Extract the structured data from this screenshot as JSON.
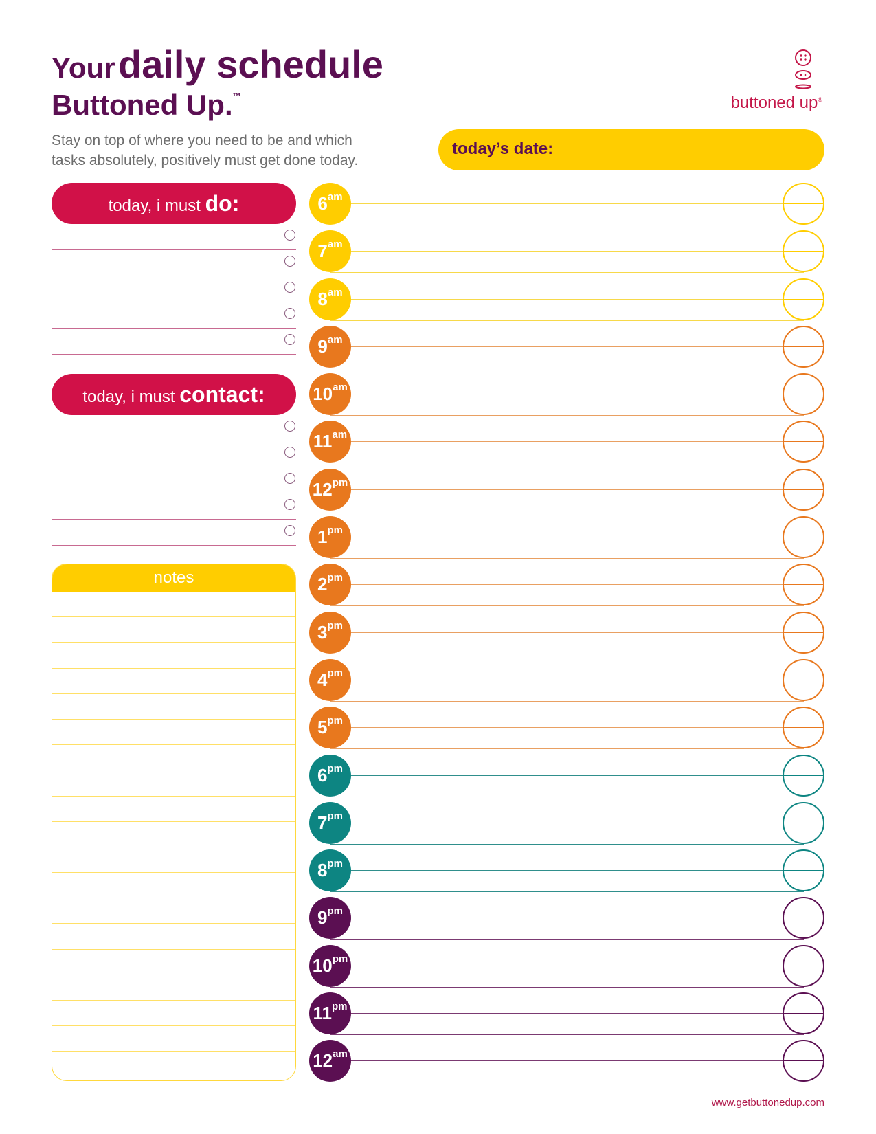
{
  "header": {
    "title_your": "Your",
    "title_daily": "daily schedule",
    "title_buttoned": "Buttoned Up.",
    "title_tm": "™",
    "subtitle_line1": "Stay on top of where you need to be and which",
    "subtitle_line2": "tasks absolutely, positively must get done today."
  },
  "logo": {
    "text": "buttoned up",
    "reg": "®",
    "icon": "button-stack-icon"
  },
  "date": {
    "label": "today’s date:"
  },
  "do_section": {
    "label_light": "today, i must ",
    "label_strong": "do:",
    "rows": [
      "",
      "",
      "",
      "",
      ""
    ]
  },
  "contact_section": {
    "label_light": "today, i must ",
    "label_strong": "contact:",
    "rows": [
      "",
      "",
      "",
      "",
      ""
    ]
  },
  "notes": {
    "label": "notes",
    "line_count": 18
  },
  "colors": {
    "yellow": "#ffcd00",
    "orange": "#e8781e",
    "teal": "#0d8582",
    "purple": "#5b0f52",
    "red": "#d11148"
  },
  "schedule": [
    {
      "hour": "6",
      "meridiem": "am",
      "color": "yellow"
    },
    {
      "hour": "7",
      "meridiem": "am",
      "color": "yellow"
    },
    {
      "hour": "8",
      "meridiem": "am",
      "color": "yellow"
    },
    {
      "hour": "9",
      "meridiem": "am",
      "color": "orange"
    },
    {
      "hour": "10",
      "meridiem": "am",
      "color": "orange"
    },
    {
      "hour": "11",
      "meridiem": "am",
      "color": "orange"
    },
    {
      "hour": "12",
      "meridiem": "pm",
      "color": "orange"
    },
    {
      "hour": "1",
      "meridiem": "pm",
      "color": "orange"
    },
    {
      "hour": "2",
      "meridiem": "pm",
      "color": "orange"
    },
    {
      "hour": "3",
      "meridiem": "pm",
      "color": "orange"
    },
    {
      "hour": "4",
      "meridiem": "pm",
      "color": "orange"
    },
    {
      "hour": "5",
      "meridiem": "pm",
      "color": "orange"
    },
    {
      "hour": "6",
      "meridiem": "pm",
      "color": "teal"
    },
    {
      "hour": "7",
      "meridiem": "pm",
      "color": "teal"
    },
    {
      "hour": "8",
      "meridiem": "pm",
      "color": "teal"
    },
    {
      "hour": "9",
      "meridiem": "pm",
      "color": "purple"
    },
    {
      "hour": "10",
      "meridiem": "pm",
      "color": "purple"
    },
    {
      "hour": "11",
      "meridiem": "pm",
      "color": "purple"
    },
    {
      "hour": "12",
      "meridiem": "am",
      "color": "purple"
    }
  ],
  "footer": {
    "url": "www.getbuttonedup.com"
  }
}
